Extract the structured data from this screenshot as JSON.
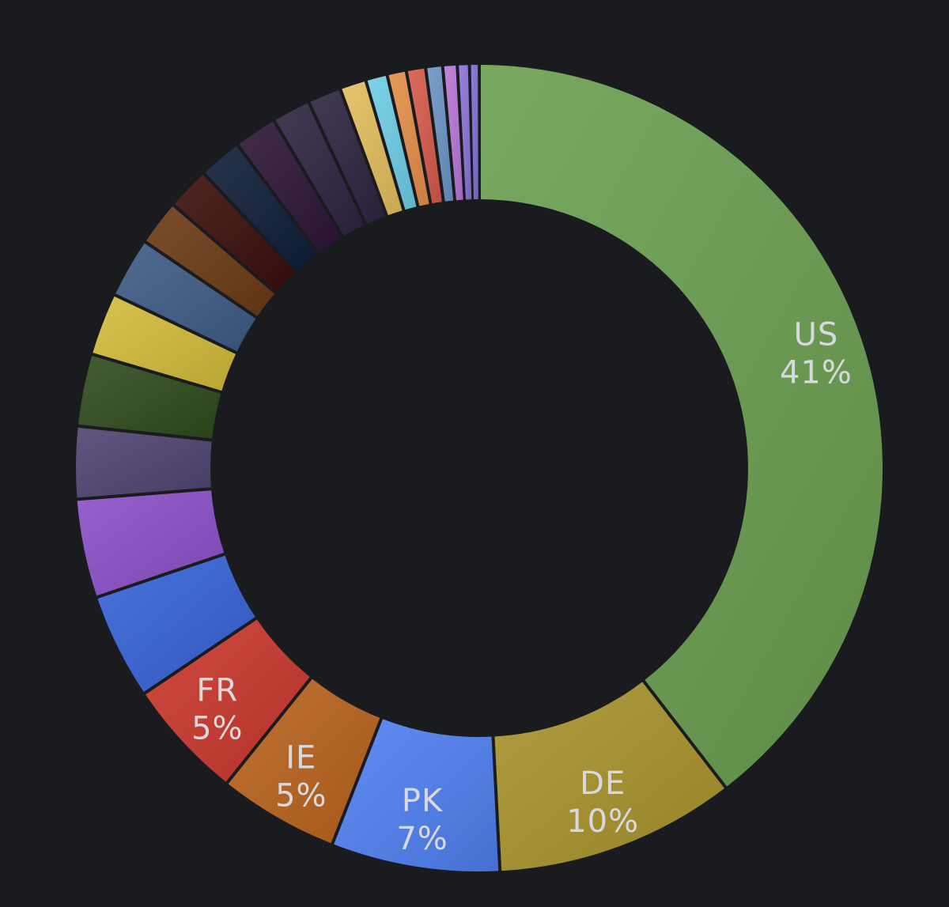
{
  "chart_data": {
    "type": "pie",
    "subtype": "donut",
    "title": "",
    "legend": "none",
    "background": "#1a1b1f",
    "slices": [
      {
        "label": "US",
        "value": 41,
        "shown_label": "US",
        "shown_value": "41%",
        "color": "#6a9e4f"
      },
      {
        "label": "DE",
        "value": 10,
        "shown_label": "DE",
        "shown_value": "10%",
        "color": "#a8922b"
      },
      {
        "label": "PK",
        "value": 7,
        "shown_label": "PK",
        "shown_value": "7%",
        "color": "#4f7ff0"
      },
      {
        "label": "IE",
        "value": 5,
        "shown_label": "IE",
        "shown_value": "5%",
        "color": "#b8621c"
      },
      {
        "label": "FR",
        "value": 5,
        "shown_label": "FR",
        "shown_value": "5%",
        "color": "#c9362c"
      },
      {
        "label": "",
        "value": 4.4,
        "color": "#3562d6"
      },
      {
        "label": "",
        "value": 4.1,
        "color": "#8a4fc6"
      },
      {
        "label": "",
        "value": 3.0,
        "color": "#4e4370"
      },
      {
        "label": "",
        "value": 3.0,
        "color": "#2f4a1d"
      },
      {
        "label": "",
        "value": 2.6,
        "color": "#d2bb3a"
      },
      {
        "label": "",
        "value": 2.5,
        "color": "#3e5a84"
      },
      {
        "label": "",
        "value": 1.9,
        "color": "#6b3a14"
      },
      {
        "label": "",
        "value": 1.8,
        "color": "#3a0e0b"
      },
      {
        "label": "",
        "value": 1.8,
        "color": "#0e1d36"
      },
      {
        "label": "",
        "value": 1.8,
        "color": "#2c1535"
      },
      {
        "label": "",
        "value": 1.6,
        "color": "#2d2440"
      },
      {
        "label": "",
        "value": 1.4,
        "color": "#2d2440"
      },
      {
        "label": "",
        "value": 1.1,
        "color": "#e2bd5c"
      },
      {
        "label": "",
        "value": 0.9,
        "color": "#6ecde6"
      },
      {
        "label": "",
        "value": 0.8,
        "color": "#e38f48"
      },
      {
        "label": "",
        "value": 0.8,
        "color": "#d55a4c"
      },
      {
        "label": "",
        "value": 0.7,
        "color": "#6a94c4"
      },
      {
        "label": "",
        "value": 0.6,
        "color": "#b876d6"
      },
      {
        "label": "",
        "value": 0.5,
        "color": "#8b73d8"
      },
      {
        "label": "",
        "value": 0.4,
        "color": "#7d6fd4"
      }
    ]
  }
}
